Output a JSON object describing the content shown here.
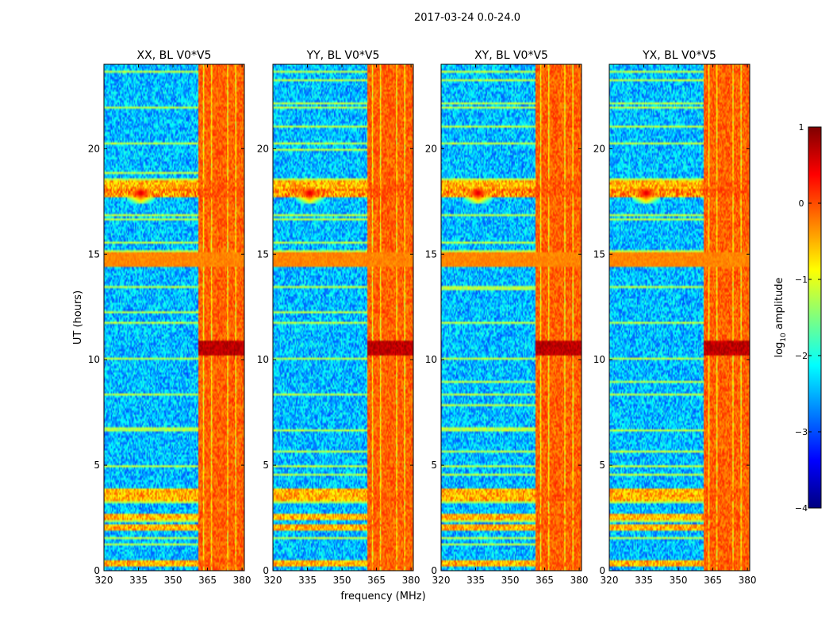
{
  "figure": {
    "suptitle": "2017-03-24 0.0-24.0"
  },
  "colors": {
    "jet": [
      "#00007f",
      "#0000ff",
      "#007fff",
      "#00ffff",
      "#7fff7f",
      "#ffff00",
      "#ff7f00",
      "#ff0000",
      "#7f0000"
    ]
  },
  "chart_data": [
    {
      "type": "heatmap",
      "title": "XX, BL V0*V5",
      "xlabel": "",
      "ylabel": "UT (hours)",
      "xlim": [
        320,
        381
      ],
      "ylim": [
        0,
        24
      ],
      "xticks": [
        320,
        335,
        350,
        365,
        380
      ],
      "yticks": [
        0,
        5,
        10,
        15,
        20
      ]
    },
    {
      "type": "heatmap",
      "title": "YY, BL V0*V5",
      "xlabel": "frequency (MHz)",
      "ylabel": "",
      "xlim": [
        320,
        381
      ],
      "ylim": [
        0,
        24
      ],
      "xticks": [
        320,
        335,
        350,
        365,
        380
      ],
      "yticks": [
        0,
        5,
        10,
        15,
        20
      ]
    },
    {
      "type": "heatmap",
      "title": "XY, BL V0*V5",
      "xlabel": "",
      "ylabel": "",
      "xlim": [
        320,
        381
      ],
      "ylim": [
        0,
        24
      ],
      "xticks": [
        320,
        335,
        350,
        365,
        380
      ],
      "yticks": [
        0,
        5,
        10,
        15,
        20
      ]
    },
    {
      "type": "heatmap",
      "title": "YX, BL V0*V5",
      "xlabel": "",
      "ylabel": "",
      "xlim": [
        320,
        381
      ],
      "ylim": [
        0,
        24
      ],
      "xticks": [
        320,
        335,
        350,
        365,
        380
      ],
      "yticks": [
        0,
        5,
        10,
        15,
        20
      ]
    }
  ],
  "colorbar": {
    "label_main": "log",
    "label_sub": "10",
    "label_tail": " amplitude",
    "range": [
      -4,
      1
    ],
    "ticks": [
      "1",
      "0",
      "−1",
      "−2",
      "−3",
      "−4"
    ]
  },
  "features": {
    "band_freq_range_mhz": [
      361,
      381
    ],
    "band_channels_mhz": [
      361.5,
      365,
      368.8,
      372,
      375.5,
      379.2
    ],
    "rfi_band_hours": [
      [
        0.2,
        0.5
      ],
      [
        1.9,
        2.2
      ],
      [
        2.4,
        2.7
      ],
      [
        3.3,
        3.9
      ],
      [
        14.4,
        15.1
      ],
      [
        18.0,
        18.5
      ]
    ],
    "burst_hour": 17.9,
    "burst_center_mhz": 336,
    "hot_block_hours": [
      10.2,
      10.9
    ]
  }
}
